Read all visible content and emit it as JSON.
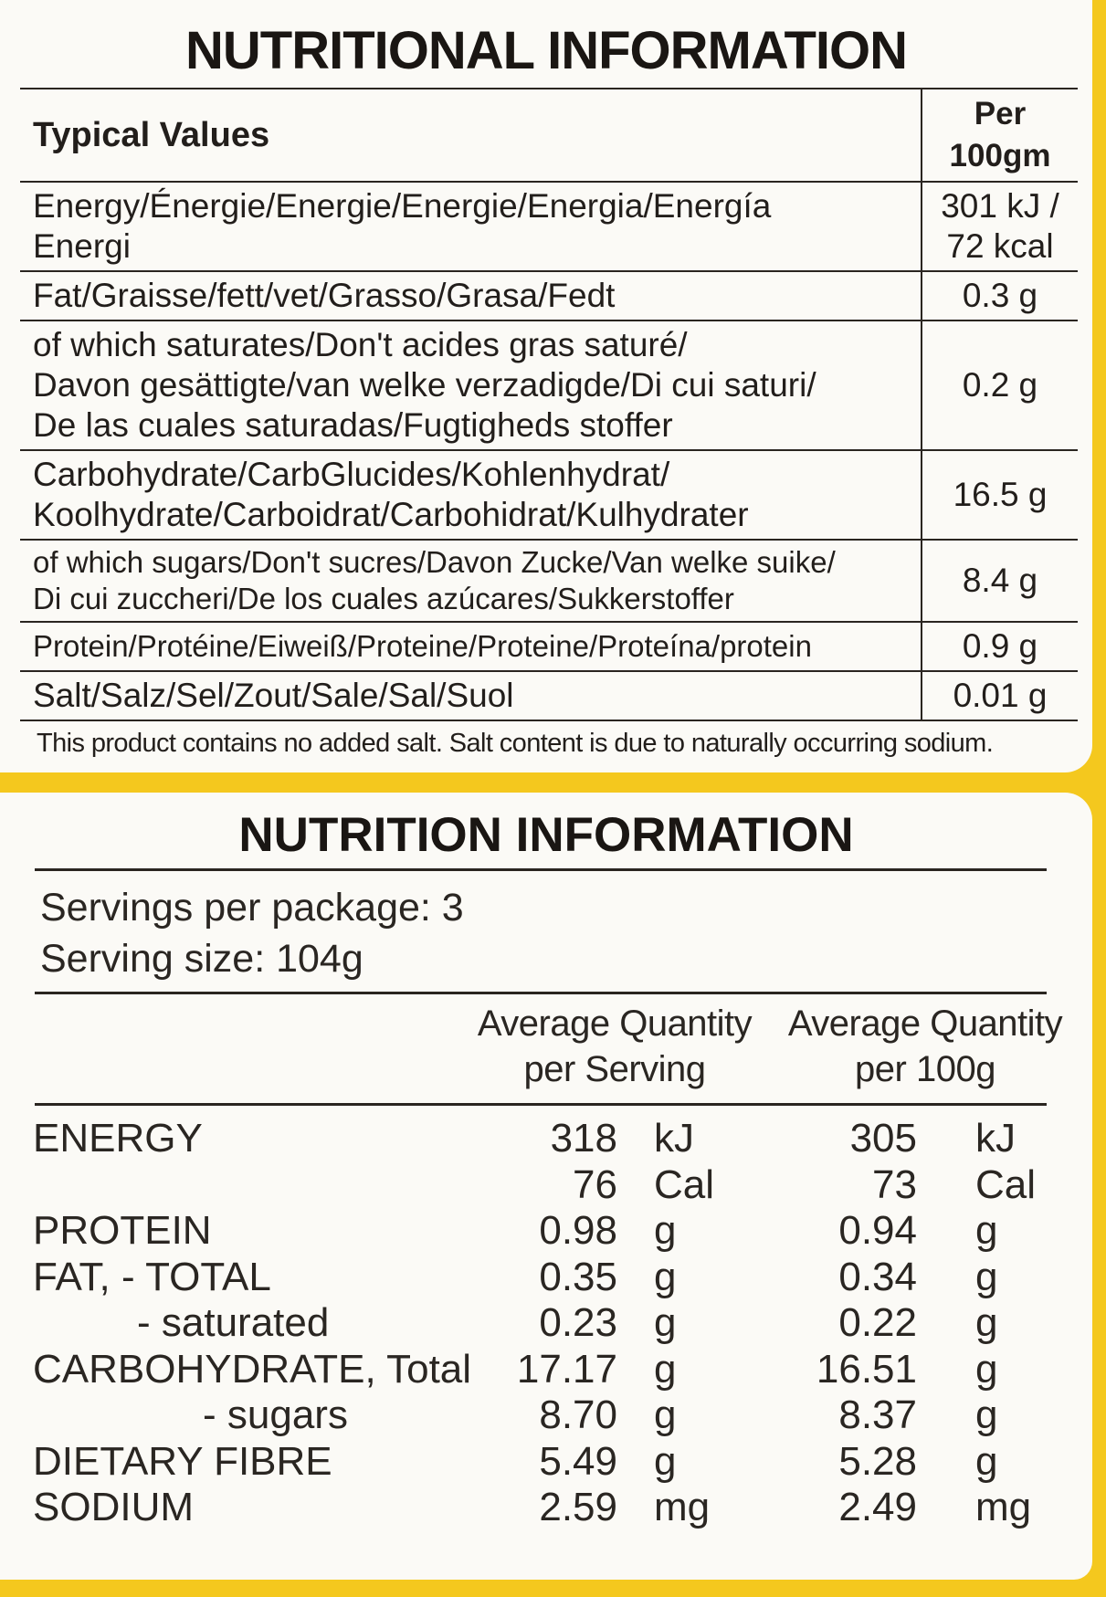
{
  "panel1": {
    "title": "NUTRITIONAL INFORMATION",
    "header": {
      "label": "Typical Values",
      "value": "Per 100gm"
    },
    "rows": [
      {
        "label_lines": [
          "Energy/Énergie/Energie/Energie/Energia/Energía",
          "Energi"
        ],
        "value_lines": [
          "301 kJ /",
          "72 kcal"
        ]
      },
      {
        "label_lines": [
          "Fat/Graisse/fett/vet/Grasso/Grasa/Fedt"
        ],
        "value_lines": [
          "0.3 g"
        ]
      },
      {
        "label_lines": [
          "of which saturates/Don't acides gras saturé/",
          "Davon gesättigte/van welke verzadigde/Di cui saturi/",
          "De las cuales saturadas/Fugtigheds stoffer"
        ],
        "value_lines": [
          "0.2 g"
        ]
      },
      {
        "label_lines": [
          "Carbohydrate/CarbGlucides/Kohlenhydrat/",
          "Koolhydrate/Carboidrat/Carbohidrat/Kulhydrater"
        ],
        "value_lines": [
          "16.5 g"
        ]
      },
      {
        "label_lines": [
          "of which sugars/Don't sucres/Davon Zucke/Van welke suike/",
          "Di cui zuccheri/De los cuales azúcares/Sukkerstoffer"
        ],
        "value_lines": [
          "8.4 g"
        ],
        "small": true
      },
      {
        "label_lines": [
          "Protein/Protéine/Eiweiß/Proteine/Proteine/Proteína/protein"
        ],
        "value_lines": [
          "0.9 g"
        ],
        "small": true
      },
      {
        "label_lines": [
          "Salt/Salz/Sel/Zout/Sale/Sal/Suol"
        ],
        "value_lines": [
          "0.01 g"
        ]
      }
    ],
    "note": "This product contains no added salt. Salt content is due to naturally occurring sodium."
  },
  "panel2": {
    "title": "NUTRITION INFORMATION",
    "servings_per_package": "Servings per package: 3",
    "serving_size": "Serving size: 104g",
    "col1_header": [
      "Average Quantity",
      "per Serving"
    ],
    "col2_header": [
      "Average Quantity",
      "per 100g"
    ],
    "rows": [
      {
        "label": "ENERGY",
        "indent": 0,
        "v1": "318",
        "u1": "kJ",
        "v2": "305",
        "u2": "kJ"
      },
      {
        "label": "",
        "indent": 0,
        "v1": "76",
        "u1": "Cal",
        "v2": "73",
        "u2": "Cal"
      },
      {
        "label": "PROTEIN",
        "indent": 0,
        "v1": "0.98",
        "u1": "g",
        "v2": "0.94",
        "u2": "g"
      },
      {
        "label": "FAT, - TOTAL",
        "indent": 0,
        "v1": "0.35",
        "u1": "g",
        "v2": "0.34",
        "u2": "g"
      },
      {
        "label": "- saturated",
        "indent": 1,
        "v1": "0.23",
        "u1": "g",
        "v2": "0.22",
        "u2": "g"
      },
      {
        "label": "CARBOHYDRATE, Total",
        "indent": 0,
        "v1": "17.17",
        "u1": "g",
        "v2": "16.51",
        "u2": "g"
      },
      {
        "label": "- sugars",
        "indent": 2,
        "v1": "8.70",
        "u1": "g",
        "v2": "8.37",
        "u2": "g"
      },
      {
        "label": "DIETARY FIBRE",
        "indent": 0,
        "v1": "5.49",
        "u1": "g",
        "v2": "5.28",
        "u2": "g"
      },
      {
        "label": "SODIUM",
        "indent": 0,
        "v1": "2.59",
        "u1": "mg",
        "v2": "2.49",
        "u2": "mg"
      }
    ]
  }
}
